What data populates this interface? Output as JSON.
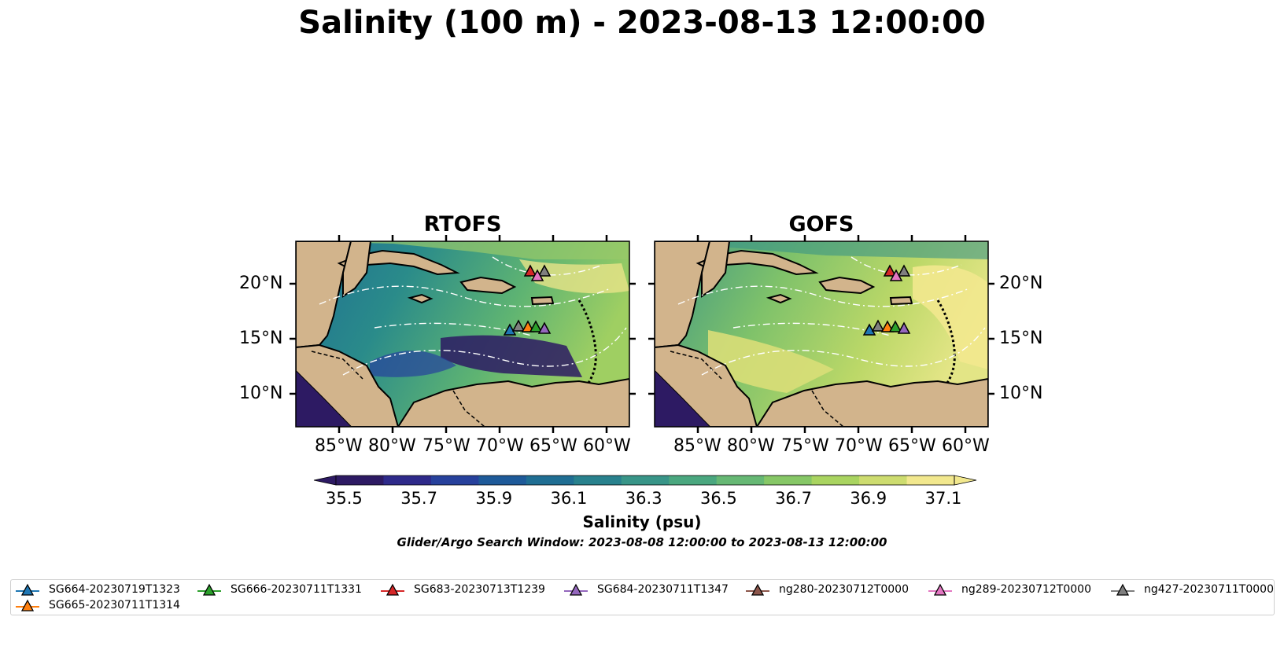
{
  "title": "Salinity (100 m) - 2023-08-13 12:00:00",
  "panels": [
    {
      "name": "RTOFS"
    },
    {
      "name": "GOFS"
    }
  ],
  "lat_ticks": [
    "20°N",
    "15°N",
    "10°N"
  ],
  "lon_ticks": [
    "85°W",
    "80°W",
    "75°W",
    "70°W",
    "65°W",
    "60°W"
  ],
  "colorbar": {
    "ticks": [
      "35.5",
      "35.7",
      "35.9",
      "36.1",
      "36.3",
      "36.5",
      "36.7",
      "36.9",
      "37.1"
    ],
    "label": "Salinity (psu)",
    "colors": [
      "#2d1a63",
      "#2e2a8a",
      "#27419c",
      "#1e5a99",
      "#1f6e93",
      "#28818d",
      "#389588",
      "#4aa77f",
      "#66b874",
      "#86c766",
      "#a9d460",
      "#cddc6f",
      "#f2e88e"
    ]
  },
  "search_window": "Glider/Argo Search Window: 2023-08-08 12:00:00 to 2023-08-13 12:00:00",
  "legend": [
    {
      "label": "SG664-20230719T1323",
      "color": "#1f77b4"
    },
    {
      "label": "SG665-20230711T1314",
      "color": "#ff7f0e"
    },
    {
      "label": "SG666-20230711T1331",
      "color": "#2ca02c"
    },
    {
      "label": "SG683-20230713T1239",
      "color": "#d62728"
    },
    {
      "label": "SG684-20230711T1347",
      "color": "#9467bd"
    },
    {
      "label": "ng280-20230712T0000",
      "color": "#8c564b"
    },
    {
      "label": "ng289-20230712T0000",
      "color": "#e377c2"
    },
    {
      "label": "ng427-20230711T0000",
      "color": "#7f7f7f"
    }
  ],
  "colors": {
    "land": "#d2b48c",
    "shelf": "#99b3e6"
  }
}
